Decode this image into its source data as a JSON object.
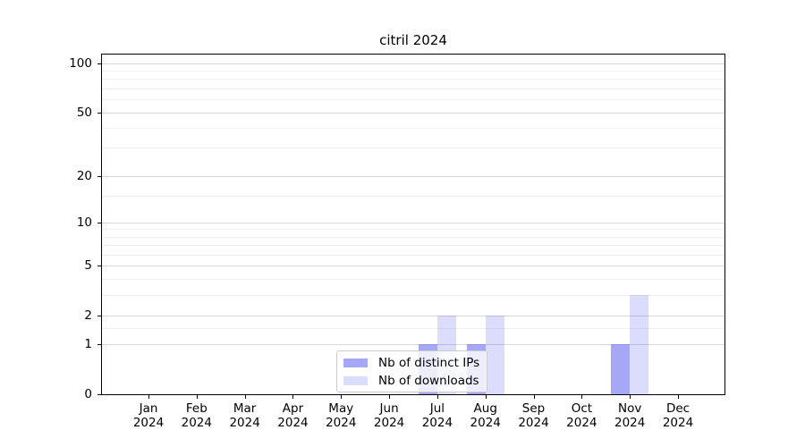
{
  "title": "citril 2024",
  "chart_data": {
    "type": "bar",
    "title": "citril 2024",
    "categories": [
      "Jan 2024",
      "Feb 2024",
      "Mar 2024",
      "Apr 2024",
      "May 2024",
      "Jun 2024",
      "Jul 2024",
      "Aug 2024",
      "Sep 2024",
      "Oct 2024",
      "Nov 2024",
      "Dec 2024"
    ],
    "series": [
      {
        "name": "Nb of distinct IPs",
        "color": "rgba(80,80,240,0.5)",
        "values": [
          0,
          0,
          0,
          0,
          0,
          0,
          1,
          1,
          0,
          0,
          1,
          0
        ]
      },
      {
        "name": "Nb of downloads",
        "color": "rgba(80,80,240,0.2)",
        "values": [
          0,
          0,
          0,
          0,
          0,
          0,
          2,
          2,
          0,
          0,
          3,
          0
        ]
      }
    ],
    "xlabel": "",
    "ylabel": "",
    "yscale": "log1p",
    "ylim": [
      0,
      113
    ],
    "yticks": [
      0,
      1,
      2,
      5,
      10,
      20,
      50,
      100
    ],
    "minor_yticks": [
      1.5,
      3,
      4,
      6,
      7,
      8,
      9,
      15,
      30,
      40,
      60,
      70,
      80,
      90
    ],
    "grid": "both",
    "legend_position": "lower center inside"
  },
  "colors": {
    "bar_base": "#5050f0",
    "grid_major": "#d6d6d6",
    "grid_minor": "#eeeeee",
    "spine": "#000000",
    "legend_border": "#cccccc",
    "background": "#ffffff"
  }
}
